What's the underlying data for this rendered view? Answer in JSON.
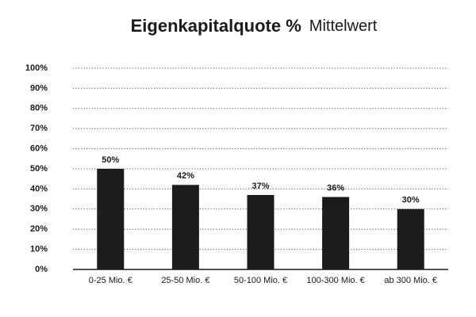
{
  "chart_data": {
    "type": "bar",
    "title": "Eigenkapitalquote %",
    "subtitle": "Mittelwert",
    "categories": [
      "0-25 Mio. €",
      "25-50 Mio. €",
      "50-100 Mio. €",
      "100-300 Mio. €",
      "ab 300 Mio. €"
    ],
    "values": [
      50,
      42,
      37,
      36,
      30
    ],
    "value_labels": [
      "50%",
      "42%",
      "37%",
      "36%",
      "30%"
    ],
    "color": "#1c1c1c",
    "ylim": [
      0,
      100
    ],
    "yticks": [
      {
        "value": 0,
        "label": "0%"
      },
      {
        "value": 10,
        "label": "10%"
      },
      {
        "value": 20,
        "label": "20%"
      },
      {
        "value": 30,
        "label": "30%"
      },
      {
        "value": 40,
        "label": "40%"
      },
      {
        "value": 50,
        "label": "50%"
      },
      {
        "value": 60,
        "label": "60%"
      },
      {
        "value": 70,
        "label": "70%"
      },
      {
        "value": 80,
        "label": "80%"
      },
      {
        "value": 90,
        "label": "90%"
      },
      {
        "value": 100,
        "label": "100%"
      }
    ],
    "grid": true
  }
}
